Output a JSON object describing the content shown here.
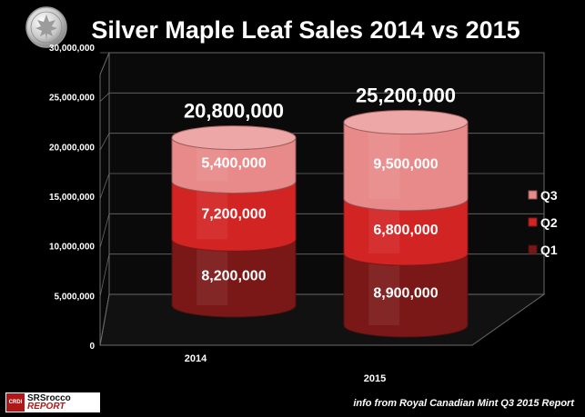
{
  "chart_data": {
    "type": "bar",
    "title": "Silver Maple Leaf Sales 2014 vs 2015",
    "categories": [
      "2014",
      "2015"
    ],
    "series": [
      {
        "name": "Q1",
        "values": [
          8200000,
          8900000
        ],
        "labels": [
          "8,200,000",
          "8,900,000"
        ],
        "color": "#7a1818"
      },
      {
        "name": "Q2",
        "values": [
          7200000,
          6800000
        ],
        "labels": [
          "7,200,000",
          "6,800,000"
        ],
        "color": "#d32424"
      },
      {
        "name": "Q3",
        "values": [
          5400000,
          9500000
        ],
        "labels": [
          "5,400,000",
          "9,500,000"
        ],
        "color": "#e88a8a"
      }
    ],
    "totals": [
      "20,800,000",
      "25,200,000"
    ],
    "ylim": [
      0,
      30000000
    ],
    "yticks": [
      0,
      5000000,
      10000000,
      15000000,
      20000000,
      25000000,
      30000000
    ],
    "ytick_labels": [
      "0",
      "5,000,000",
      "10,000,000",
      "15,000,000",
      "20,000,000",
      "25,000,000",
      "30,000,000"
    ],
    "legend_order": [
      "Q3",
      "Q2",
      "Q1"
    ],
    "legend_placement": "right",
    "grid": true,
    "xlabel": "",
    "ylabel": ""
  },
  "logo": {
    "badge": "CRDI",
    "top": "SRSrocco",
    "bottom": "REPORT"
  },
  "source_note": "info from Royal Canadian Mint Q3 2015 Report",
  "colors": {
    "background": "#000000",
    "title": "#ffffff",
    "axis_text": "#ffffff",
    "grid": "#6a6a6a"
  }
}
